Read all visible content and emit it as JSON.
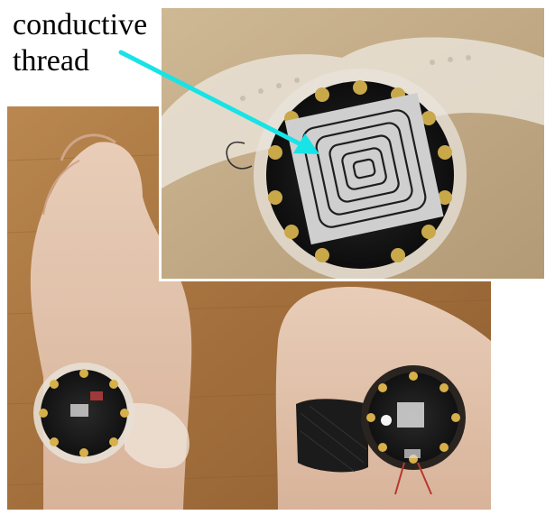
{
  "annotation": {
    "line1": "conductive",
    "line2": "thread",
    "arrow_color": "#18e3e6"
  },
  "photos": {
    "main_description_icon": "wrist-wearable-photo",
    "inset_description_icon": "conductive-thread-closeup-photo"
  }
}
